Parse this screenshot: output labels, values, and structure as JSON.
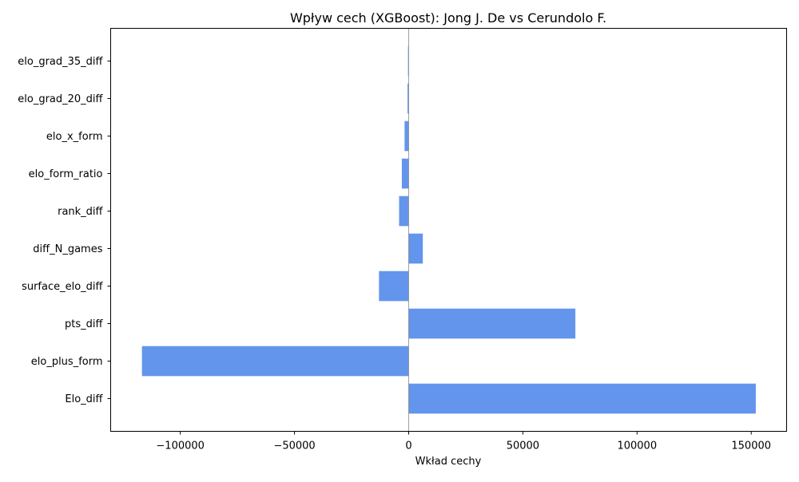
{
  "chart_data": {
    "type": "bar",
    "orientation": "horizontal",
    "title": "Wpływ cech (XGBoost): Jong J. De vs Cerundolo F.",
    "xlabel": "Wkład cechy",
    "ylabel": "",
    "categories": [
      "Elo_diff",
      "elo_plus_form",
      "pts_diff",
      "surface_elo_diff",
      "diff_N_games",
      "rank_diff",
      "elo_form_ratio",
      "elo_x_form",
      "elo_grad_20_diff",
      "elo_grad_35_diff"
    ],
    "values": [
      152000,
      -116800,
      73000,
      -13000,
      6200,
      -4200,
      -3000,
      -1800,
      -500,
      -300
    ],
    "xlim": [
      -130500,
      165500
    ],
    "x_ticks": [
      -100000,
      -50000,
      0,
      50000,
      100000,
      150000
    ],
    "x_tick_labels": [
      "−100000",
      "−50000",
      "0",
      "50000",
      "100000",
      "150000"
    ],
    "zero_line": true,
    "grid": false,
    "bar_color": "#6495ED"
  }
}
